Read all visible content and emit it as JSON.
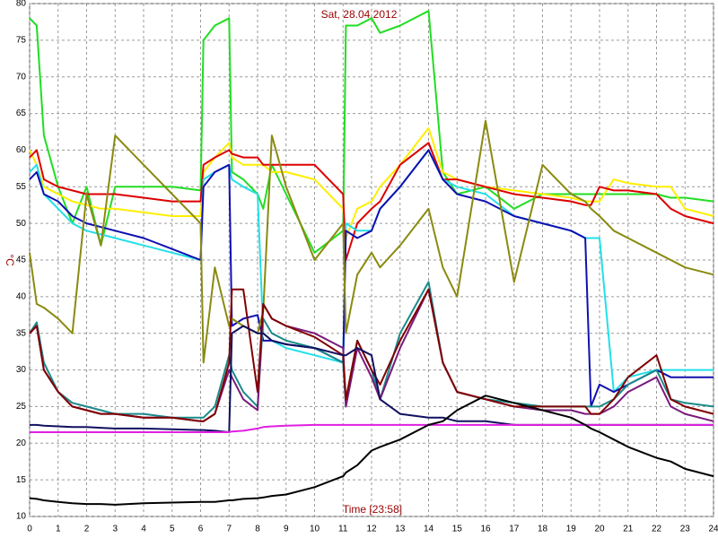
{
  "chart_data": {
    "type": "line",
    "title": "Sat, 28.04.2012",
    "x_label": "Time [23:58]",
    "y_label": "°C",
    "xlim": [
      0,
      24
    ],
    "ylim": [
      10,
      80
    ],
    "xticks": [
      0,
      1,
      2,
      3,
      4,
      5,
      6,
      7,
      8,
      9,
      10,
      11,
      12,
      13,
      14,
      15,
      16,
      17,
      18,
      19,
      20,
      21,
      22,
      23,
      24
    ],
    "yticks": [
      10,
      15,
      20,
      25,
      30,
      35,
      40,
      45,
      50,
      55,
      60,
      65,
      70,
      75,
      80
    ],
    "grid": true,
    "x": [
      0,
      0.25,
      0.5,
      1,
      1.5,
      2,
      2.5,
      3,
      4,
      5,
      6,
      6.1,
      6.5,
      7,
      7.1,
      7.5,
      8,
      8.2,
      8.5,
      9,
      10,
      11,
      11.1,
      11.5,
      12,
      12.3,
      13,
      14,
      14.5,
      15,
      16,
      17,
      18,
      19,
      19.5,
      19.7,
      20,
      20.5,
      21,
      22,
      22.5,
      23,
      24
    ],
    "series": [
      {
        "color": "#22dd22",
        "values": [
          78,
          77,
          62,
          55,
          50,
          55,
          47,
          55,
          55,
          55,
          54.5,
          75,
          77,
          78,
          57,
          56,
          54,
          52,
          58,
          54,
          46,
          49,
          77,
          77,
          78,
          76,
          77,
          79,
          57,
          54,
          55,
          52,
          54,
          54,
          54,
          54,
          54,
          54,
          54,
          54,
          53.5,
          53.5,
          53
        ]
      },
      {
        "color": "#ffee00",
        "values": [
          60,
          58,
          55,
          54,
          53,
          52.5,
          52,
          52,
          51.5,
          51,
          51,
          57,
          59,
          61,
          59,
          58,
          58,
          58,
          57,
          57,
          56,
          52,
          48,
          52,
          53,
          55,
          58,
          63,
          57,
          56,
          55,
          54.5,
          54,
          53.5,
          53,
          53,
          53,
          56,
          55.5,
          55,
          55,
          52,
          51
        ]
      },
      {
        "color": "#dd0000",
        "values": [
          59,
          60,
          56,
          55,
          54.5,
          54,
          54,
          54,
          53.5,
          53,
          53,
          58,
          59,
          60,
          59.5,
          59,
          59,
          58,
          58,
          58,
          58,
          54,
          45,
          50,
          52,
          53,
          58,
          61,
          56,
          56,
          55,
          54,
          53.5,
          53,
          52.5,
          52.5,
          55,
          54.5,
          54.5,
          54,
          52,
          51,
          50
        ]
      },
      {
        "color": "#22e0e8",
        "values": [
          57,
          58,
          54,
          52,
          50,
          49,
          48.5,
          48,
          47,
          46,
          45,
          56,
          57,
          58,
          56,
          55,
          54,
          35,
          34,
          33,
          32,
          31,
          50,
          49,
          49,
          52,
          55,
          60,
          56,
          55,
          54,
          51,
          50,
          49,
          48,
          48,
          48,
          27,
          29,
          30,
          30,
          30,
          30
        ]
      },
      {
        "color": "#1010b0",
        "values": [
          56,
          57,
          54,
          53,
          51,
          50,
          49.5,
          49,
          48,
          46.5,
          45,
          55,
          57,
          58,
          36,
          37,
          37.5,
          34,
          34,
          33.5,
          33,
          31,
          49,
          48,
          49,
          52,
          55,
          60,
          56,
          54,
          53,
          51,
          50,
          49,
          48,
          25,
          28,
          27,
          28,
          30,
          29,
          29,
          29
        ]
      },
      {
        "color": "#8a8a10",
        "values": [
          46,
          39,
          38.5,
          37,
          35,
          54,
          47,
          62,
          58,
          54,
          50,
          31,
          44,
          36,
          37,
          36,
          35,
          38,
          62,
          55,
          45,
          50,
          35,
          43,
          46,
          44,
          47,
          52,
          44,
          40,
          64,
          42,
          58,
          54,
          53,
          52,
          51,
          49,
          48,
          46,
          45,
          44,
          43
        ]
      },
      {
        "color": "#1a8a8a",
        "values": [
          35,
          36.5,
          31,
          27,
          25.5,
          25,
          24.5,
          24,
          24,
          23.5,
          23.5,
          23.5,
          25,
          32,
          30,
          27,
          25,
          37,
          35,
          34,
          33,
          31,
          25,
          34,
          30,
          26,
          35,
          42,
          31,
          27,
          26,
          25.5,
          25,
          25,
          25,
          25,
          25,
          26,
          28,
          30,
          26,
          25.5,
          25
        ]
      },
      {
        "color": "#7a1a7a",
        "values": [
          35,
          36,
          30,
          27,
          25,
          24.5,
          24,
          24,
          23.5,
          23.5,
          23,
          23,
          24,
          30,
          29,
          26,
          24.5,
          39,
          37,
          36,
          35,
          33,
          25,
          33,
          29,
          26,
          33,
          41,
          31,
          27,
          26,
          25,
          24.5,
          24.5,
          24,
          24,
          24,
          25,
          27,
          29,
          25,
          24,
          23
        ]
      },
      {
        "color": "#800000",
        "values": [
          35,
          36,
          30,
          27,
          25,
          24.5,
          24,
          24,
          23.5,
          23.5,
          23,
          23,
          24,
          31,
          41,
          41,
          27,
          39,
          37,
          36,
          34.5,
          32,
          26,
          34,
          30,
          28,
          34,
          41,
          31,
          27,
          26,
          25,
          25,
          25,
          25,
          24,
          24,
          26,
          29,
          32,
          26,
          25,
          24
        ]
      },
      {
        "color": "#101060",
        "values": [
          22.5,
          22.5,
          22.4,
          22.3,
          22.2,
          22.2,
          22.1,
          22,
          22,
          21.9,
          21.8,
          21.8,
          21.7,
          21.5,
          35,
          36,
          35,
          35,
          34,
          33.5,
          33,
          32,
          32,
          33,
          32,
          26,
          24,
          23.5,
          23.5,
          23,
          23,
          22.5,
          22.5,
          22.5,
          22.5,
          22.5,
          22.5,
          22.5,
          22.5,
          22.5,
          22.5,
          22.5,
          22.5
        ]
      },
      {
        "color": "#e020e0",
        "values": [
          21.5,
          21.5,
          21.5,
          21.5,
          21.5,
          21.5,
          21.5,
          21.5,
          21.5,
          21.5,
          21.5,
          21.5,
          21.5,
          21.5,
          21.6,
          21.7,
          22,
          22.2,
          22.3,
          22.4,
          22.5,
          22.5,
          22.5,
          22.5,
          22.5,
          22.5,
          22.5,
          22.5,
          22.5,
          22.5,
          22.5,
          22.5,
          22.5,
          22.5,
          22.5,
          22.5,
          22.5,
          22.5,
          22.5,
          22.5,
          22.5,
          22.5,
          22.5
        ]
      },
      {
        "color": "#000000",
        "values": [
          12.5,
          12.4,
          12.2,
          12,
          11.8,
          11.7,
          11.7,
          11.6,
          11.8,
          11.9,
          12,
          12,
          12,
          12.2,
          12.2,
          12.4,
          12.5,
          12.6,
          12.8,
          13,
          14,
          15.5,
          16,
          17,
          19,
          19.5,
          20.5,
          22.5,
          23,
          24.5,
          26.5,
          25.5,
          24.5,
          23.5,
          22.5,
          22,
          21.5,
          20.5,
          19.5,
          18,
          17.5,
          16.5,
          15.5
        ]
      }
    ]
  }
}
